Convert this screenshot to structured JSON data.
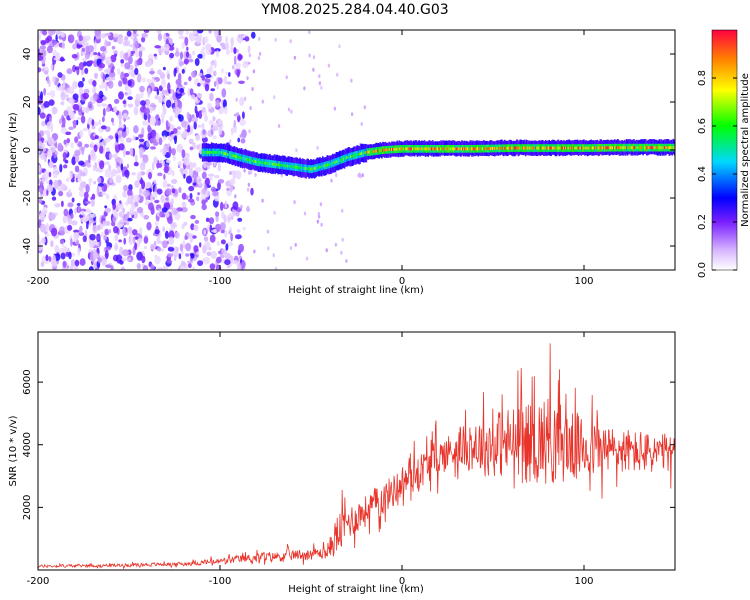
{
  "title": "YM08.2025.284.04.40.G03",
  "colors": {
    "snr_line": "#e8342b",
    "axis": "#000000",
    "noise_purple": "#7a3fe0"
  },
  "chart_data": [
    {
      "type": "heatmap",
      "name": "spectrogram",
      "title": "YM08.2025.284.04.40.G03",
      "xlabel": "Height of straight line (km)",
      "ylabel": "Frequency (Hz)",
      "xlim": [
        -200,
        150
      ],
      "ylim": [
        -50,
        50
      ],
      "x_ticks": [
        -200,
        -100,
        0,
        100
      ],
      "y_ticks": [
        -40,
        -20,
        0,
        20,
        40
      ],
      "colorbar": {
        "label": "Normalized spectral amplitude",
        "range": [
          0,
          1
        ],
        "ticks": [
          0.0,
          0.2,
          0.4,
          0.6,
          0.8
        ],
        "tick_labels": [
          "0.0",
          "0.2",
          "0.4",
          "0.6",
          "0.8"
        ]
      },
      "signal_ridge": {
        "x": [
          -110,
          -100,
          -90,
          -80,
          -70,
          -60,
          -50,
          -40,
          -30,
          -20,
          -10,
          0,
          20,
          40,
          60,
          80,
          100,
          120,
          150
        ],
        "y": [
          -1,
          -1,
          -3,
          -5,
          -6,
          -7,
          -8,
          -6,
          -3,
          -1,
          0,
          0.5,
          0.5,
          0.5,
          0.8,
          0.8,
          0.8,
          1,
          1
        ]
      },
      "noise_region": {
        "x_start": -200,
        "x_end": -105
      }
    },
    {
      "type": "line",
      "name": "snr",
      "xlabel": "Height of straight line (km)",
      "ylabel": "SNR (10 * v/v)",
      "xlim": [
        -200,
        150
      ],
      "ylim": [
        0,
        7600
      ],
      "x_ticks": [
        -200,
        -100,
        0,
        100
      ],
      "y_ticks": [
        2000,
        4000,
        6000
      ],
      "series": [
        {
          "name": "SNR",
          "envelope_x": [
            -200,
            -150,
            -120,
            -100,
            -80,
            -60,
            -40,
            -35,
            -30,
            -20,
            -10,
            0,
            10,
            20,
            30,
            50,
            70,
            80,
            90,
            100,
            120,
            150
          ],
          "mean": [
            150,
            200,
            250,
            350,
            500,
            600,
            700,
            1200,
            1500,
            1900,
            2300,
            2800,
            3200,
            3600,
            3900,
            4000,
            4100,
            4200,
            4000,
            3900,
            3800,
            3700
          ],
          "spread": [
            80,
            100,
            120,
            200,
            300,
            350,
            400,
            1000,
            700,
            700,
            700,
            700,
            800,
            800,
            800,
            1400,
            1800,
            1900,
            1700,
            1300,
            1000,
            800
          ],
          "peak_x": 81.5,
          "peak_y": 7500
        }
      ]
    }
  ]
}
